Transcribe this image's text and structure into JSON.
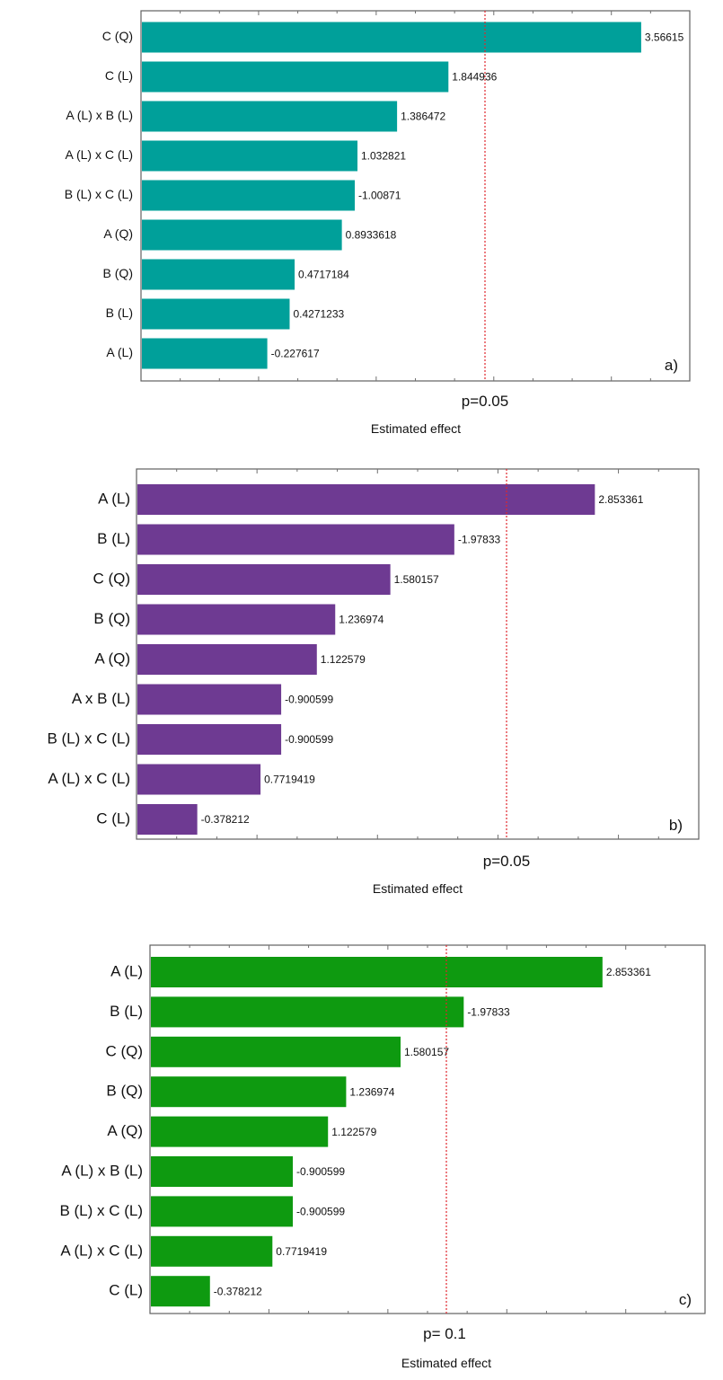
{
  "chart_data": [
    {
      "type": "bar",
      "orientation": "horizontal",
      "panel_label": "a)",
      "xlabel": "Estimated effect",
      "reference_line": {
        "label": "p=0.05",
        "value": 2.36
      },
      "xlim": [
        -0.9,
        4.0
      ],
      "color": "#00A09A",
      "categories": [
        "C (Q)",
        "C (L)",
        "A (L) x B (L)",
        "A (L) x C (L)",
        "B (L) x C (L)",
        "A (Q)",
        "B (Q)",
        "B (L)",
        "A (L)"
      ],
      "values": [
        3.56615,
        1.844936,
        1.386472,
        1.032821,
        1.00871,
        0.8933618,
        0.4717184,
        0.4271233,
        0.227617
      ],
      "value_labels": [
        "3.56615",
        "1.844936",
        "1.386472",
        "1.032821",
        "-1.00871",
        "0.8933618",
        "0.4717184",
        "0.4271233",
        "-0.227617"
      ]
    },
    {
      "type": "bar",
      "orientation": "horizontal",
      "panel_label": "b)",
      "xlabel": "Estimated effect",
      "reference_line": {
        "label": "p=0.05",
        "value": 2.06
      },
      "xlim": [
        0,
        3.5
      ],
      "color": "#6E3A92",
      "categories": [
        "A (L)",
        "B (L)",
        "C (Q)",
        "B (Q)",
        "A (Q)",
        "A x B (L)",
        "B (L) x C (L)",
        "A (L) x C (L)",
        "C (L)"
      ],
      "values": [
        2.853361,
        1.97833,
        1.580157,
        1.236974,
        1.122579,
        0.900599,
        0.900599,
        0.7719419,
        0.378212
      ],
      "value_labels": [
        "2.853361",
        "-1.97833",
        "1.580157",
        "1.236974",
        "1.122579",
        "-0.900599",
        "-0.900599",
        "0.7719419",
        "-0.378212"
      ]
    },
    {
      "type": "bar",
      "orientation": "horizontal",
      "panel_label": "c)",
      "xlabel": "Estimated effect",
      "reference_line": {
        "label": "p= 0.1",
        "value": 1.82
      },
      "xlim": [
        0,
        3.5
      ],
      "color": "#0E9A10",
      "categories": [
        "A (L)",
        "B (L)",
        "C (Q)",
        "B (Q)",
        "A (Q)",
        "A (L) x B (L)",
        "B (L) x C (L)",
        "A (L) x C (L)",
        "C (L)"
      ],
      "values": [
        2.853361,
        1.97833,
        1.580157,
        1.236974,
        1.122579,
        0.900599,
        0.900599,
        0.7719419,
        0.378212
      ],
      "value_labels": [
        "2.853361",
        "-1.97833",
        "1.580157",
        "1.236974",
        "1.122579",
        "-0.900599",
        "-0.900599",
        "0.7719419",
        "-0.378212"
      ]
    }
  ]
}
